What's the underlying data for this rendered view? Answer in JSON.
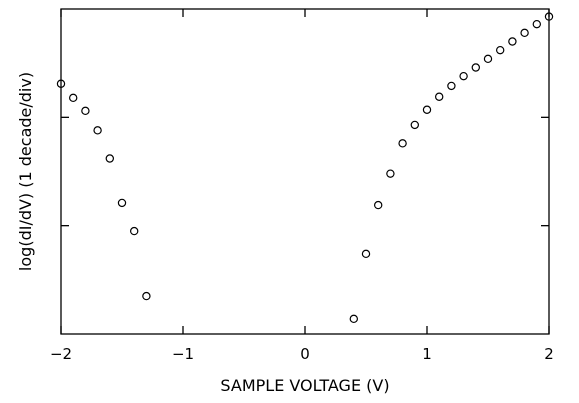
{
  "chart_data": {
    "type": "scatter",
    "title": "",
    "xlabel": "SAMPLE VOLTAGE (V)",
    "ylabel": "log(dI/dV)   (1 decade/div)",
    "xlim": [
      -2,
      2
    ],
    "ylim": [
      0,
      3
    ],
    "xticks": [
      -2,
      -1,
      0,
      1,
      2
    ],
    "xtick_labels": [
      "−2",
      "−1",
      "0",
      "1",
      "2"
    ],
    "yticks": [
      1,
      2
    ],
    "grid": false,
    "legend": "none",
    "marker": "open-circle",
    "points": [
      {
        "x": -2.0,
        "y": 2.31
      },
      {
        "x": -1.9,
        "y": 2.18
      },
      {
        "x": -1.8,
        "y": 2.06
      },
      {
        "x": -1.7,
        "y": 1.88
      },
      {
        "x": -1.6,
        "y": 1.62
      },
      {
        "x": -1.5,
        "y": 1.21
      },
      {
        "x": -1.4,
        "y": 0.95
      },
      {
        "x": -1.3,
        "y": 0.35
      },
      {
        "x": 0.4,
        "y": 0.14
      },
      {
        "x": 0.5,
        "y": 0.74
      },
      {
        "x": 0.6,
        "y": 1.19
      },
      {
        "x": 0.7,
        "y": 1.48
      },
      {
        "x": 0.8,
        "y": 1.76
      },
      {
        "x": 0.9,
        "y": 1.93
      },
      {
        "x": 1.0,
        "y": 2.07
      },
      {
        "x": 1.1,
        "y": 2.19
      },
      {
        "x": 1.2,
        "y": 2.29
      },
      {
        "x": 1.3,
        "y": 2.38
      },
      {
        "x": 1.4,
        "y": 2.46
      },
      {
        "x": 1.5,
        "y": 2.54
      },
      {
        "x": 1.6,
        "y": 2.62
      },
      {
        "x": 1.7,
        "y": 2.7
      },
      {
        "x": 1.8,
        "y": 2.78
      },
      {
        "x": 1.9,
        "y": 2.86
      },
      {
        "x": 2.0,
        "y": 2.93
      }
    ]
  }
}
